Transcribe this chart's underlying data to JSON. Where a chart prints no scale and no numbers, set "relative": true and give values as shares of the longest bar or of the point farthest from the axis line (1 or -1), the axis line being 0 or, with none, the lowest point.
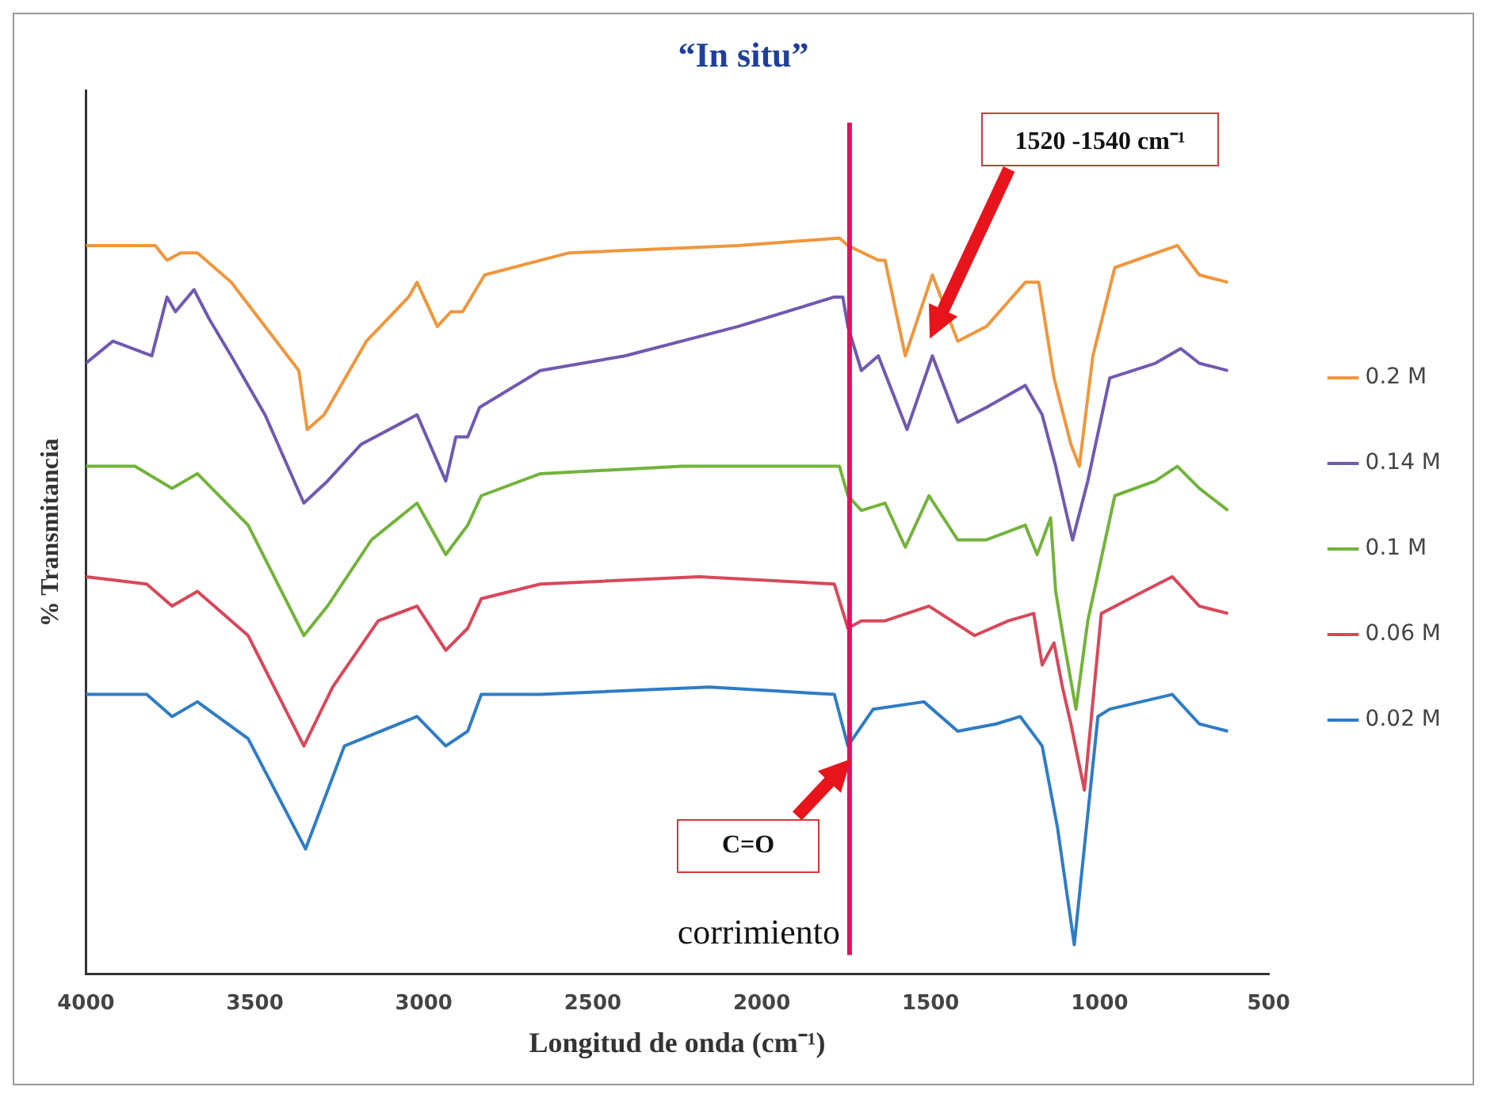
{
  "chart_data": {
    "type": "line",
    "title": "“In situ”",
    "xlabel": "Longitud de onda (cm⁻¹)",
    "ylabel": "% Transmitancia",
    "relative": true,
    "xlim": [
      4000,
      500
    ],
    "xticks": [
      4000,
      3500,
      3000,
      2500,
      2000,
      1500,
      1000,
      500
    ],
    "grid": false,
    "legend": "right",
    "marker": "none",
    "line_style": "solid",
    "ref_lines": [
      {
        "axis": "x",
        "value": 1740,
        "label": "corrimiento",
        "color": "#e0115f"
      }
    ],
    "annotations": [
      "1520 -1540 cm⁻¹",
      "C=O"
    ],
    "series": [
      {
        "name": "0.2 M",
        "color": "#f0963c",
        "x": [
          4000,
          3795,
          3760,
          3720,
          3670,
          3570,
          3370,
          3345,
          3295,
          3170,
          3045,
          3020,
          2960,
          2920,
          2885,
          2820,
          2570,
          2070,
          1770,
          1745,
          1655,
          1635,
          1575,
          1495,
          1420,
          1335,
          1220,
          1180,
          1135,
          1085,
          1060,
          1020,
          955,
          770,
          705,
          620
        ],
        "values": [
          0.99,
          0.99,
          0.97,
          0.98,
          0.98,
          0.94,
          0.82,
          0.74,
          0.76,
          0.86,
          0.92,
          0.94,
          0.88,
          0.9,
          0.9,
          0.95,
          0.98,
          0.99,
          1.0,
          0.99,
          0.97,
          0.97,
          0.84,
          0.95,
          0.86,
          0.88,
          0.94,
          0.94,
          0.81,
          0.72,
          0.69,
          0.84,
          0.96,
          0.99,
          0.95,
          0.94
        ]
      },
      {
        "name": "0.14 M",
        "color": "#7059b0",
        "x": [
          4000,
          3920,
          3805,
          3760,
          3735,
          3680,
          3635,
          3570,
          3470,
          3355,
          3285,
          3185,
          3020,
          2935,
          2905,
          2870,
          2835,
          2655,
          2405,
          2070,
          1785,
          1760,
          1745,
          1705,
          1655,
          1570,
          1495,
          1420,
          1335,
          1220,
          1170,
          1130,
          1080,
          1035,
          970,
          835,
          760,
          705,
          620
        ],
        "values": [
          0.83,
          0.86,
          0.84,
          0.92,
          0.9,
          0.93,
          0.89,
          0.84,
          0.76,
          0.64,
          0.67,
          0.72,
          0.76,
          0.67,
          0.73,
          0.73,
          0.77,
          0.82,
          0.84,
          0.88,
          0.92,
          0.92,
          0.88,
          0.82,
          0.84,
          0.74,
          0.84,
          0.75,
          0.77,
          0.8,
          0.76,
          0.69,
          0.59,
          0.67,
          0.81,
          0.83,
          0.85,
          0.83,
          0.82
        ]
      },
      {
        "name": "0.1 M",
        "color": "#72b33a",
        "x": [
          4000,
          3855,
          3745,
          3670,
          3520,
          3355,
          3285,
          3155,
          3020,
          2935,
          2870,
          2830,
          2655,
          2235,
          1770,
          1745,
          1705,
          1635,
          1575,
          1505,
          1420,
          1335,
          1220,
          1185,
          1145,
          1130,
          1105,
          1070,
          1035,
          955,
          835,
          770,
          705,
          620
        ],
        "values": [
          0.69,
          0.69,
          0.66,
          0.68,
          0.61,
          0.46,
          0.5,
          0.59,
          0.64,
          0.57,
          0.61,
          0.65,
          0.68,
          0.69,
          0.69,
          0.65,
          0.63,
          0.64,
          0.58,
          0.65,
          0.59,
          0.59,
          0.61,
          0.57,
          0.62,
          0.52,
          0.45,
          0.36,
          0.48,
          0.65,
          0.67,
          0.69,
          0.66,
          0.63
        ]
      },
      {
        "name": "0.06 M",
        "color": "#d9475a",
        "x": [
          4000,
          3820,
          3745,
          3670,
          3520,
          3355,
          3270,
          3135,
          3020,
          2935,
          2870,
          2830,
          2655,
          2185,
          1785,
          1745,
          1705,
          1635,
          1505,
          1370,
          1270,
          1195,
          1170,
          1135,
          1110,
          1085,
          1045,
          995,
          870,
          785,
          705,
          620
        ],
        "values": [
          0.54,
          0.53,
          0.5,
          0.52,
          0.46,
          0.31,
          0.39,
          0.48,
          0.5,
          0.44,
          0.47,
          0.51,
          0.53,
          0.54,
          0.53,
          0.47,
          0.48,
          0.48,
          0.5,
          0.46,
          0.48,
          0.49,
          0.42,
          0.45,
          0.39,
          0.34,
          0.25,
          0.49,
          0.52,
          0.54,
          0.5,
          0.49
        ]
      },
      {
        "name": "0.02 M",
        "color": "#2f7cc4",
        "x": [
          4000,
          3820,
          3745,
          3670,
          3520,
          3350,
          3235,
          3020,
          2935,
          2870,
          2830,
          2655,
          2155,
          1785,
          1745,
          1670,
          1520,
          1420,
          1305,
          1235,
          1170,
          1125,
          1075,
          1005,
          970,
          785,
          705,
          620
        ],
        "values": [
          0.38,
          0.38,
          0.35,
          0.37,
          0.32,
          0.17,
          0.31,
          0.35,
          0.31,
          0.33,
          0.38,
          0.38,
          0.39,
          0.38,
          0.31,
          0.36,
          0.37,
          0.33,
          0.34,
          0.35,
          0.31,
          0.2,
          0.04,
          0.35,
          0.36,
          0.38,
          0.34,
          0.33
        ]
      }
    ]
  }
}
